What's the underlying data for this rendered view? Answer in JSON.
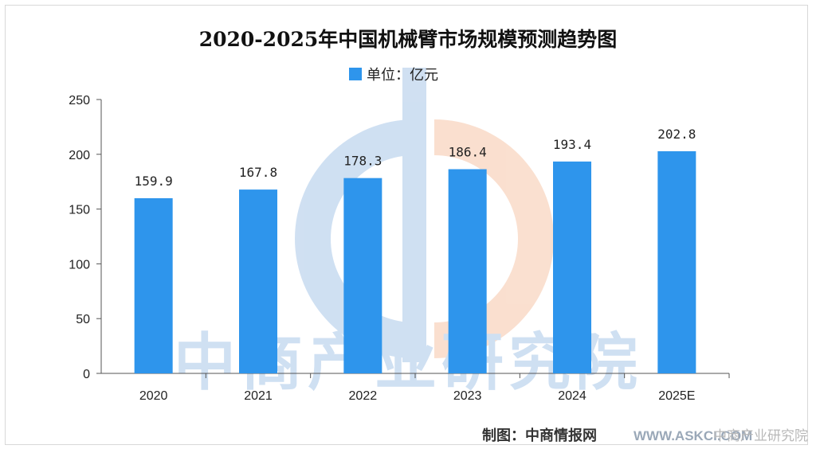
{
  "chart_data": {
    "type": "bar",
    "title": "2020-2025年中国机械臂市场规模预测趋势图",
    "legend": {
      "label": "单位：亿元",
      "position": "top-center"
    },
    "categories": [
      "2020",
      "2021",
      "2022",
      "2023",
      "2024",
      "2025E"
    ],
    "values": [
      159.9,
      167.8,
      178.3,
      186.4,
      193.4,
      202.8
    ],
    "value_labels": [
      "159.9",
      "167.8",
      "178.3",
      "186.4",
      "193.4",
      "202.8"
    ],
    "ylim": [
      0,
      250
    ],
    "yticks": [
      "0",
      "50",
      "100",
      "150",
      "200",
      "250"
    ],
    "grid": false,
    "bar_color": "#2e95ec"
  },
  "source": "制图：中商情报网",
  "watermark": {
    "text": "中商产业研究院",
    "url_text": "WWW.ASKCI.COM",
    "corner_text": "中商产业研究院",
    "colors": {
      "blue": "#a9c7e8",
      "orange": "#f6c6a9"
    }
  }
}
